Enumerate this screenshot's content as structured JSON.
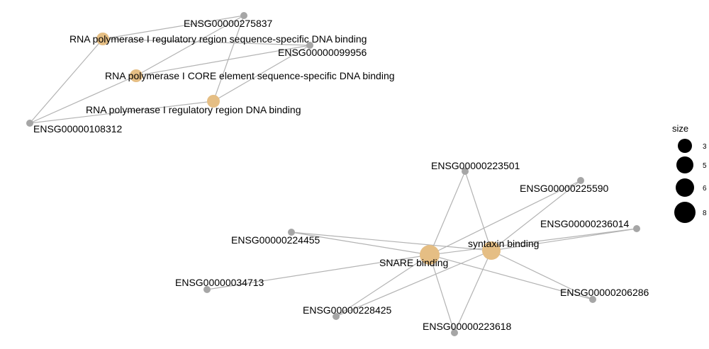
{
  "colors": {
    "edge": "#b3b3b3",
    "category_node": "#e5be84",
    "gene_node": "#a6a6a6",
    "legend_dot": "#000000",
    "background": "#ffffff"
  },
  "nodes": [
    {
      "id": "rna_pol_reg_seq",
      "label": "RNA polymerase I regulatory region sequence-specific DNA binding",
      "type": "category"
    },
    {
      "id": "rna_pol_core",
      "label": "RNA polymerase I CORE element sequence-specific DNA binding",
      "type": "category"
    },
    {
      "id": "rna_pol_reg",
      "label": "RNA polymerase I regulatory region DNA binding",
      "type": "category"
    },
    {
      "id": "g275837",
      "label": "ENSG00000275837",
      "type": "gene"
    },
    {
      "id": "g099956",
      "label": "ENSG00000099956",
      "type": "gene"
    },
    {
      "id": "g108312",
      "label": "ENSG00000108312",
      "type": "gene"
    },
    {
      "id": "snare",
      "label": "SNARE binding",
      "type": "category"
    },
    {
      "id": "syntaxin",
      "label": "syntaxin binding",
      "type": "category"
    },
    {
      "id": "g223501",
      "label": "ENSG00000223501",
      "type": "gene"
    },
    {
      "id": "g225590",
      "label": "ENSG00000225590",
      "type": "gene"
    },
    {
      "id": "g236014",
      "label": "ENSG00000236014",
      "type": "gene"
    },
    {
      "id": "g224455",
      "label": "ENSG00000224455",
      "type": "gene"
    },
    {
      "id": "g034713",
      "label": "ENSG00000034713",
      "type": "gene"
    },
    {
      "id": "g206286",
      "label": "ENSG00000206286",
      "type": "gene"
    },
    {
      "id": "g228425",
      "label": "ENSG00000228425",
      "type": "gene"
    },
    {
      "id": "g223618",
      "label": "ENSG00000223618",
      "type": "gene"
    }
  ],
  "edges": [
    [
      "rna_pol_reg_seq",
      "g275837"
    ],
    [
      "rna_pol_reg_seq",
      "g099956"
    ],
    [
      "rna_pol_reg_seq",
      "g108312"
    ],
    [
      "rna_pol_core",
      "g275837"
    ],
    [
      "rna_pol_core",
      "g099956"
    ],
    [
      "rna_pol_core",
      "g108312"
    ],
    [
      "rna_pol_reg",
      "g275837"
    ],
    [
      "rna_pol_reg",
      "g099956"
    ],
    [
      "rna_pol_reg",
      "g108312"
    ],
    [
      "snare",
      "g223501"
    ],
    [
      "snare",
      "g225590"
    ],
    [
      "snare",
      "g236014"
    ],
    [
      "snare",
      "g224455"
    ],
    [
      "snare",
      "g034713"
    ],
    [
      "snare",
      "g206286"
    ],
    [
      "snare",
      "g228425"
    ],
    [
      "snare",
      "g223618"
    ],
    [
      "syntaxin",
      "g223501"
    ],
    [
      "syntaxin",
      "g225590"
    ],
    [
      "syntaxin",
      "g236014"
    ],
    [
      "syntaxin",
      "g224455"
    ],
    [
      "syntaxin",
      "g206286"
    ],
    [
      "syntaxin",
      "g228425"
    ],
    [
      "syntaxin",
      "g223618"
    ]
  ],
  "legend": {
    "title": "size",
    "items": [
      {
        "label": "3",
        "size": 3
      },
      {
        "label": "5",
        "size": 5
      },
      {
        "label": "6",
        "size": 6
      },
      {
        "label": "8",
        "size": 8
      }
    ]
  }
}
